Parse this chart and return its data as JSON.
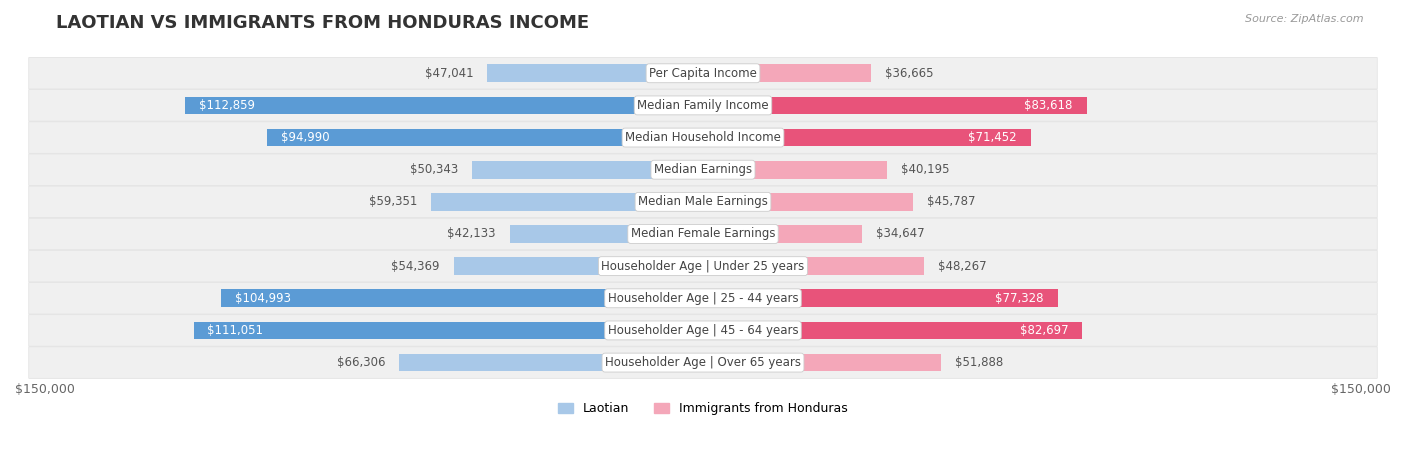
{
  "title": "LAOTIAN VS IMMIGRANTS FROM HONDURAS INCOME",
  "source": "Source: ZipAtlas.com",
  "categories": [
    "Per Capita Income",
    "Median Family Income",
    "Median Household Income",
    "Median Earnings",
    "Median Male Earnings",
    "Median Female Earnings",
    "Householder Age | Under 25 years",
    "Householder Age | 25 - 44 years",
    "Householder Age | 45 - 64 years",
    "Householder Age | Over 65 years"
  ],
  "laotian_values": [
    47041,
    112859,
    94990,
    50343,
    59351,
    42133,
    54369,
    104993,
    111051,
    66306
  ],
  "honduras_values": [
    36665,
    83618,
    71452,
    40195,
    45787,
    34647,
    48267,
    77328,
    82697,
    51888
  ],
  "laotian_labels": [
    "$47,041",
    "$112,859",
    "$94,990",
    "$50,343",
    "$59,351",
    "$42,133",
    "$54,369",
    "$104,993",
    "$111,051",
    "$66,306"
  ],
  "honduras_labels": [
    "$36,665",
    "$83,618",
    "$71,452",
    "$40,195",
    "$45,787",
    "$34,647",
    "$48,267",
    "$77,328",
    "$82,697",
    "$51,888"
  ],
  "laotian_color_light": "#a8c8e8",
  "laotian_color_dark": "#5b9bd5",
  "honduras_color_light": "#f4a7b9",
  "honduras_color_dark": "#e8537a",
  "laotian_threshold": 70000,
  "honduras_threshold": 60000,
  "laotian_label_inside": [
    false,
    true,
    true,
    false,
    false,
    false,
    false,
    true,
    true,
    false
  ],
  "honduras_label_inside": [
    false,
    true,
    true,
    false,
    false,
    false,
    false,
    true,
    true,
    false
  ],
  "max_value": 150000,
  "bar_height": 0.55,
  "title_fontsize": 13,
  "label_fontsize": 8.5,
  "category_fontsize": 8.5,
  "legend_laotian": "Laotian",
  "legend_honduras": "Immigrants from Honduras",
  "axis_label_left": "$150,000",
  "axis_label_right": "$150,000"
}
